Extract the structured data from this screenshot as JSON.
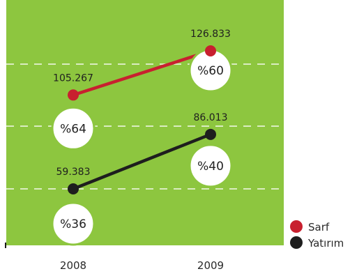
{
  "chart_data": {
    "type": "line",
    "categories": [
      "2008",
      "2009"
    ],
    "series": [
      {
        "name": "Sarf",
        "color": "#c8202f",
        "values": [
          105267,
          126833
        ],
        "value_labels": [
          "105.267",
          "126.833"
        ],
        "share_labels": [
          "%64",
          "%60"
        ]
      },
      {
        "name": "Yatırım",
        "color": "#1e1e1e",
        "values": [
          59383,
          86013
        ],
        "value_labels": [
          "59.383",
          "86.013"
        ],
        "share_labels": [
          "%36",
          "%40"
        ]
      }
    ],
    "grid": true,
    "legend_position": "bottom-right",
    "background_color": "#8dc63f"
  }
}
